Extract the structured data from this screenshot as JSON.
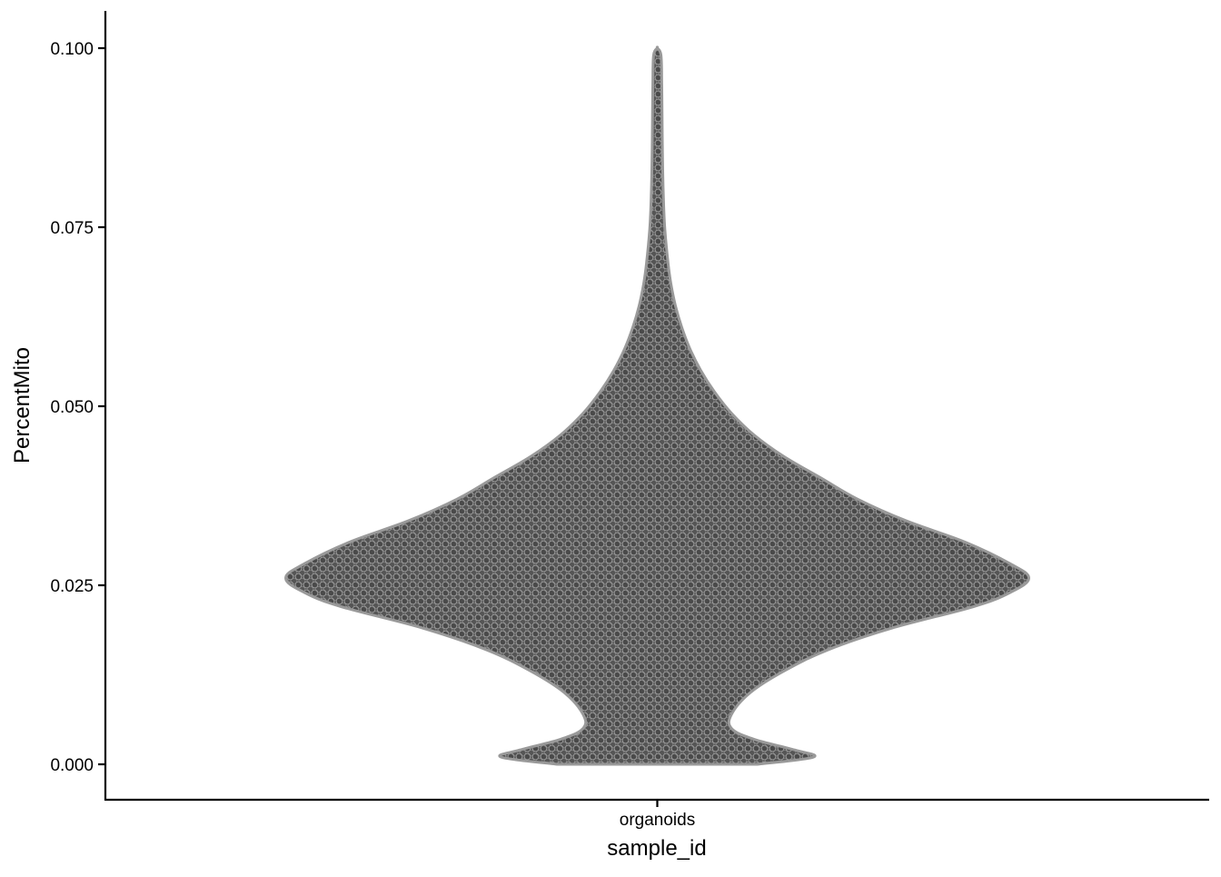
{
  "chart_data": {
    "type": "violin",
    "title": "",
    "xlabel": "sample_id",
    "ylabel": "PercentMito",
    "categories": [
      "organoids"
    ],
    "yticks": [
      "0.000",
      "0.025",
      "0.050",
      "0.075",
      "0.100"
    ],
    "ytick_values": [
      0.0,
      0.025,
      0.05,
      0.075,
      0.1
    ],
    "ylim": [
      -0.005,
      0.105
    ],
    "grid": false,
    "legend": "none",
    "series": [
      {
        "category": "organoids",
        "min": 0.0,
        "max": 0.1,
        "density_profile": [
          {
            "y": 0.0,
            "half_width": 0.27
          },
          {
            "y": 0.001,
            "half_width": 0.42
          },
          {
            "y": 0.002,
            "half_width": 0.37
          },
          {
            "y": 0.0035,
            "half_width": 0.26
          },
          {
            "y": 0.005,
            "half_width": 0.2
          },
          {
            "y": 0.007,
            "half_width": 0.2
          },
          {
            "y": 0.01,
            "half_width": 0.25
          },
          {
            "y": 0.013,
            "half_width": 0.34
          },
          {
            "y": 0.016,
            "half_width": 0.46
          },
          {
            "y": 0.019,
            "half_width": 0.63
          },
          {
            "y": 0.022,
            "half_width": 0.85
          },
          {
            "y": 0.024,
            "half_width": 0.95
          },
          {
            "y": 0.026,
            "half_width": 1.0
          },
          {
            "y": 0.028,
            "half_width": 0.95
          },
          {
            "y": 0.031,
            "half_width": 0.83
          },
          {
            "y": 0.034,
            "half_width": 0.67
          },
          {
            "y": 0.037,
            "half_width": 0.54
          },
          {
            "y": 0.04,
            "half_width": 0.44
          },
          {
            "y": 0.043,
            "half_width": 0.34
          },
          {
            "y": 0.046,
            "half_width": 0.26
          },
          {
            "y": 0.049,
            "half_width": 0.2
          },
          {
            "y": 0.052,
            "half_width": 0.154
          },
          {
            "y": 0.055,
            "half_width": 0.117
          },
          {
            "y": 0.058,
            "half_width": 0.088
          },
          {
            "y": 0.061,
            "half_width": 0.066
          },
          {
            "y": 0.064,
            "half_width": 0.049
          },
          {
            "y": 0.067,
            "half_width": 0.037
          },
          {
            "y": 0.07,
            "half_width": 0.029
          },
          {
            "y": 0.075,
            "half_width": 0.02
          },
          {
            "y": 0.08,
            "half_width": 0.016
          },
          {
            "y": 0.085,
            "half_width": 0.014
          },
          {
            "y": 0.09,
            "half_width": 0.013
          },
          {
            "y": 0.095,
            "half_width": 0.012
          },
          {
            "y": 0.099,
            "half_width": 0.01
          },
          {
            "y": 0.1,
            "half_width": 0.0
          }
        ]
      }
    ],
    "colors": {
      "violin_fill": "#555555",
      "violin_outline": "#9a9a9a",
      "point_fill": "#4a4a4a",
      "point_outline": "#a2a2a2",
      "axis": "#000000"
    }
  }
}
